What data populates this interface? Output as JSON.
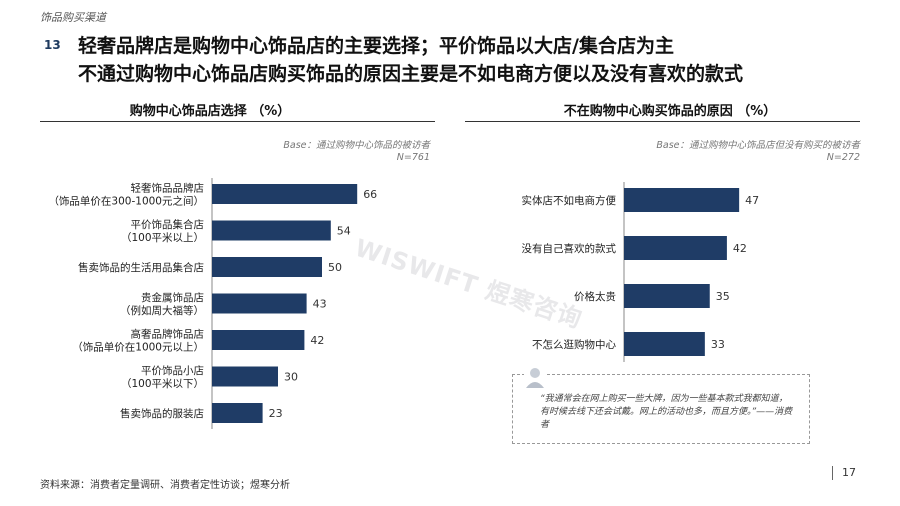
{
  "header": {
    "section_label": "饰品购买渠道",
    "number": "13",
    "title_line1": "轻奢品牌店是购物中心饰品店的主要选择；平价饰品以大店/集合店为主",
    "title_line2": "不通过购物中心饰品店购买饰品的原因主要是不如电商方便以及没有喜欢的款式"
  },
  "left_panel": {
    "title": "购物中心饰品店选择 （%）",
    "base_line1": "Base：通过购物中心饰品的被访者",
    "base_line2": "N=761"
  },
  "right_panel": {
    "title": "不在购物中心购买饰品的原因 （%）",
    "base_line1": "Base：通过购物中心饰品店但没有购买的被访者",
    "base_line2": "N=272"
  },
  "quote": {
    "text": "“我通常会在网上购买一些大牌，因为一些基本款式我都知道，有时候去线下还会试戴。网上的活动也多，而且方便。”——消费者"
  },
  "watermark": "WISWIFT 煜寒咨询",
  "footer": {
    "source": "资料来源：消费者定量调研、消费者定性访谈；煜寒分析",
    "page": "17"
  },
  "colors": {
    "bar": "#1f3c66"
  },
  "chart_data": [
    {
      "type": "bar",
      "orientation": "horizontal",
      "title": "购物中心饰品店选择 （%）",
      "categories": [
        [
          "轻奢饰品品牌店",
          "（饰品单价在300-1000元之间）"
        ],
        [
          "平价饰品集合店",
          "（100平米以上）"
        ],
        [
          "售卖饰品的生活用品集合店"
        ],
        [
          "贵金属饰品店",
          "（例如周大福等）"
        ],
        [
          "高奢品牌饰品店",
          "（饰品单价在1000元以上）"
        ],
        [
          "平价饰品小店",
          "（100平米以下）"
        ],
        [
          "售卖饰品的服装店"
        ]
      ],
      "values": [
        66,
        54,
        50,
        43,
        42,
        30,
        23
      ],
      "unit": "%"
    },
    {
      "type": "bar",
      "orientation": "horizontal",
      "title": "不在购物中心购买饰品的原因 （%）",
      "categories": [
        [
          "实体店不如电商方便"
        ],
        [
          "没有自己喜欢的款式"
        ],
        [
          "价格太贵"
        ],
        [
          "不怎么逛购物中心"
        ]
      ],
      "values": [
        47,
        42,
        35,
        33
      ],
      "unit": "%"
    }
  ]
}
